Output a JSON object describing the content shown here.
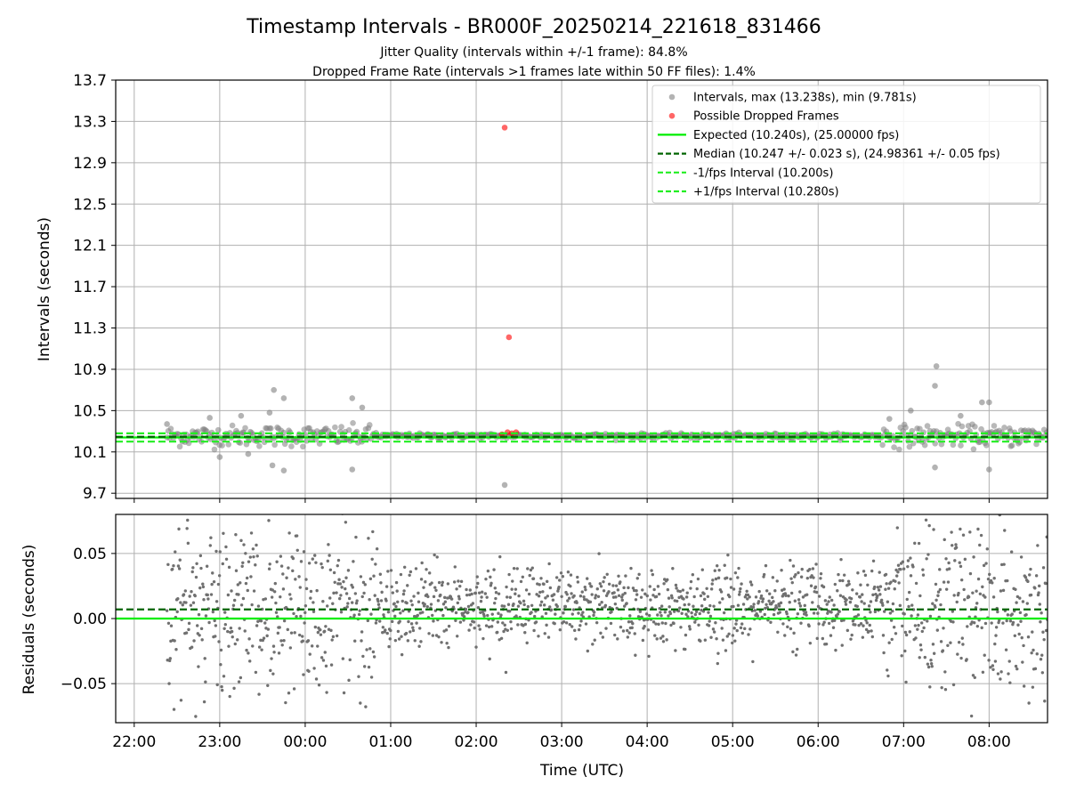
{
  "figure": {
    "title": "Timestamp Intervals - BR000F_20250214_221618_831466",
    "subtitle_1": "Jitter Quality (intervals within +/-1 frame): 84.8%",
    "subtitle_2": "Dropped Frame Rate (intervals >1 frames late within 50 FF files): 1.4%"
  },
  "colors": {
    "scatter": "#808080",
    "dropped": "#ff0000",
    "expected": "#00ee00",
    "median": "#006400",
    "interval_bounds": "#22ee22",
    "grid": "#b0b0b0"
  },
  "chart_data": [
    {
      "type": "scatter",
      "panel": "top",
      "xlabel": "",
      "ylabel": "Intervals (seconds)",
      "xlim": [
        "21:47",
        "08:41"
      ],
      "ylim": [
        9.65,
        13.7
      ],
      "x_ticks": [
        "22:00",
        "23:00",
        "00:00",
        "01:00",
        "02:00",
        "03:00",
        "04:00",
        "05:00",
        "06:00",
        "07:00",
        "08:00"
      ],
      "y_ticks": [
        9.7,
        10.1,
        10.5,
        10.9,
        11.3,
        11.7,
        12.1,
        12.5,
        12.9,
        13.3,
        13.7
      ],
      "y_tick_labels": [
        "9.7",
        "10.1",
        "10.5",
        "10.9",
        "11.3",
        "11.7",
        "12.1",
        "12.5",
        "12.9",
        "13.3",
        "13.7"
      ],
      "grid": true,
      "legend_position": "top-right",
      "legend": [
        "Intervals, max (13.238s), min (9.781s)",
        "Possible Dropped Frames",
        "Expected (10.240s), (25.00000 fps)",
        "Median (10.247 +/- 0.023 s), (24.98361 +/- 0.05 fps)",
        "-1/fps Interval (10.200s)",
        "+1/fps Interval (10.280s)"
      ],
      "series": [
        {
          "name": "Intervals, max (13.238s), min (9.781s)",
          "style": "scatter",
          "points": [
            {
              "x": "22:23",
              "y": 10.37
            },
            {
              "x": "22:53",
              "y": 10.43
            },
            {
              "x": "23:00",
              "y": 10.05
            },
            {
              "x": "23:15",
              "y": 10.45
            },
            {
              "x": "23:20",
              "y": 10.08
            },
            {
              "x": "23:35",
              "y": 10.48
            },
            {
              "x": "23:37",
              "y": 9.97
            },
            {
              "x": "23:38",
              "y": 10.7
            },
            {
              "x": "23:45",
              "y": 10.62
            },
            {
              "x": "23:45",
              "y": 9.92
            },
            {
              "x": "00:33",
              "y": 10.62
            },
            {
              "x": "00:33",
              "y": 9.93
            },
            {
              "x": "00:40",
              "y": 10.53
            },
            {
              "x": "02:20",
              "y": 9.78
            },
            {
              "x": "06:50",
              "y": 10.42
            },
            {
              "x": "07:05",
              "y": 10.5
            },
            {
              "x": "07:23",
              "y": 10.93
            },
            {
              "x": "07:22",
              "y": 10.74
            },
            {
              "x": "07:22",
              "y": 9.95
            },
            {
              "x": "07:40",
              "y": 10.45
            },
            {
              "x": "07:55",
              "y": 10.58
            },
            {
              "x": "08:00",
              "y": 10.58
            },
            {
              "x": "08:00",
              "y": 9.93
            },
            {
              "x": "08:15",
              "y": 10.3
            }
          ]
        },
        {
          "name": "Possible Dropped Frames",
          "style": "scatter",
          "points": [
            {
              "x": "02:20",
              "y": 13.24
            },
            {
              "x": "02:23",
              "y": 11.21
            },
            {
              "x": "02:18",
              "y": 10.27
            },
            {
              "x": "02:22",
              "y": 10.29
            },
            {
              "x": "02:25",
              "y": 10.28
            },
            {
              "x": "02:28",
              "y": 10.29
            }
          ]
        },
        {
          "name": "Expected (10.240s), (25.00000 fps)",
          "style": "line",
          "y": 10.24
        },
        {
          "name": "Median (10.247 +/- 0.023 s), (24.98361 +/- 0.05 fps)",
          "style": "dashed",
          "y": 10.247
        },
        {
          "name": "-1/fps Interval (10.200s)",
          "style": "dashed",
          "y": 10.2
        },
        {
          "name": "+1/fps Interval (10.280s)",
          "style": "dashed",
          "y": 10.28
        }
      ]
    },
    {
      "type": "scatter",
      "panel": "bottom",
      "xlabel": "Time (UTC)",
      "ylabel": "Residuals (seconds)",
      "xlim": [
        "21:47",
        "08:41"
      ],
      "ylim": [
        -0.08,
        0.08
      ],
      "x_ticks": [
        "22:00",
        "23:00",
        "00:00",
        "01:00",
        "02:00",
        "03:00",
        "04:00",
        "05:00",
        "06:00",
        "07:00",
        "08:00"
      ],
      "y_ticks": [
        -0.05,
        0.0,
        0.05
      ],
      "y_tick_labels": [
        "−0.05",
        "0.00",
        "0.05"
      ],
      "grid": true,
      "series": [
        {
          "name": "",
          "style": "scatter",
          "note_points": "residuals of intervals from expected"
        },
        {
          "name": "",
          "style": "line",
          "y": 0.0
        },
        {
          "name": "",
          "style": "dashed",
          "y": 0.007
        }
      ]
    }
  ]
}
